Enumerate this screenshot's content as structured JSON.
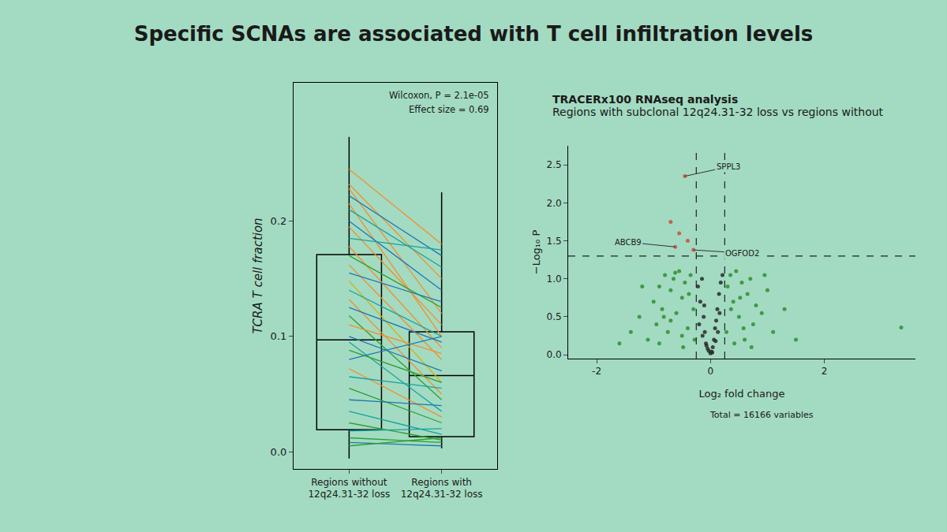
{
  "title": "Specific SCNAs are associated with T cell infiltration levels",
  "chart_data": [
    {
      "type": "box",
      "y_label": "TCRA T cell fraction",
      "categories": [
        "Regions without 12q24.31-32 loss",
        "Regions with 12q24.31-32 loss"
      ],
      "boxes": {
        "q1": [
          0.019,
          0.013
        ],
        "median": [
          0.097,
          0.066
        ],
        "q3": [
          0.171,
          0.104
        ],
        "lower": [
          -0.006,
          0.003
        ],
        "upper": [
          0.273,
          0.225
        ]
      },
      "color": "#000000",
      "pairs": [
        {
          "values": [
            0.245,
            0.18
          ],
          "color": "#f28e2b"
        },
        {
          "values": [
            0.232,
            0.15
          ],
          "color": "#f28e2b"
        },
        {
          "values": [
            0.228,
            0.12
          ],
          "color": "#f28e2b"
        },
        {
          "values": [
            0.222,
            0.17
          ],
          "color": "#1f77b4"
        },
        {
          "values": [
            0.215,
            0.1
          ],
          "color": "#f28e2b"
        },
        {
          "values": [
            0.21,
            0.16
          ],
          "color": "#17a2a0"
        },
        {
          "values": [
            0.2,
            0.14
          ],
          "color": "#1f77b4"
        },
        {
          "values": [
            0.195,
            0.11
          ],
          "color": "#f28e2b"
        },
        {
          "values": [
            0.185,
            0.175
          ],
          "color": "#17a2a0"
        },
        {
          "values": [
            0.178,
            0.09
          ],
          "color": "#f28e2b"
        },
        {
          "values": [
            0.17,
            0.125
          ],
          "color": "#2ca02c"
        },
        {
          "values": [
            0.162,
            0.08
          ],
          "color": "#f28e2b"
        },
        {
          "values": [
            0.155,
            0.13
          ],
          "color": "#1f77b4"
        },
        {
          "values": [
            0.148,
            0.06
          ],
          "color": "#d4b106"
        },
        {
          "values": [
            0.14,
            0.1
          ],
          "color": "#17a2a0"
        },
        {
          "values": [
            0.132,
            0.05
          ],
          "color": "#f28e2b"
        },
        {
          "values": [
            0.125,
            0.095
          ],
          "color": "#1f77b4"
        },
        {
          "values": [
            0.118,
            0.045
          ],
          "color": "#2ca02c"
        },
        {
          "values": [
            0.11,
            0.085
          ],
          "color": "#f28e2b"
        },
        {
          "values": [
            0.1,
            0.07
          ],
          "color": "#1f77b4"
        },
        {
          "values": [
            0.095,
            0.035
          ],
          "color": "#17a2a0"
        },
        {
          "values": [
            0.088,
            0.06
          ],
          "color": "#2ca02c"
        },
        {
          "values": [
            0.08,
            0.1
          ],
          "color": "#1f77b4"
        },
        {
          "values": [
            0.072,
            0.03
          ],
          "color": "#f28e2b"
        },
        {
          "values": [
            0.065,
            0.055
          ],
          "color": "#17a2a0"
        },
        {
          "values": [
            0.055,
            0.025
          ],
          "color": "#2ca02c"
        },
        {
          "values": [
            0.045,
            0.04
          ],
          "color": "#1f77b4"
        },
        {
          "values": [
            0.035,
            0.015
          ],
          "color": "#17a2a0"
        },
        {
          "values": [
            0.025,
            0.01
          ],
          "color": "#2ca02c"
        },
        {
          "values": [
            0.018,
            0.02
          ],
          "color": "#17a2a0"
        },
        {
          "values": [
            0.012,
            0.008
          ],
          "color": "#2ca02c"
        },
        {
          "values": [
            0.008,
            0.005
          ],
          "color": "#1f77b4"
        },
        {
          "values": [
            0.005,
            0.012
          ],
          "color": "#2ca02c"
        }
      ],
      "annotations": [
        "Wilcoxon, P = 2.1e-05",
        "Effect size = 0.69"
      ],
      "ylim": [
        -0.015,
        0.32
      ],
      "yticks": [
        {
          "value": 0,
          "label": "0.0"
        },
        0.1,
        0.2
      ],
      "grid": false
    },
    {
      "type": "scatter",
      "title": "TRACERx100 RNAseq analysis",
      "subtitle": "Regions with subclonal 12q24.31-32 loss vs regions without",
      "x_label": "Log₂ fold change",
      "y_label": "−Log₁₀ P",
      "series": [
        {
          "color": "#2a2a2a",
          "x": [
            -0.22,
            -0.18,
            -0.15,
            -0.12,
            -0.1,
            -0.08,
            -0.05,
            -0.03,
            0,
            0.02,
            0.04,
            0.06,
            0.08,
            0.1,
            0.12,
            0.15,
            0.18,
            0.21,
            -0.2,
            -0.14,
            -0.07,
            0.03,
            0.09,
            0.16,
            -0.11,
            0.13
          ],
          "y": [
            0.9,
            0.7,
            1.0,
            0.5,
            0.3,
            0.15,
            0.08,
            0.05,
            0.02,
            0.04,
            0.1,
            0.2,
            0.35,
            0.45,
            0.6,
            0.8,
            0.95,
            1.05,
            0.4,
            0.25,
            0.12,
            0.03,
            0.18,
            0.55,
            0.65,
            0.3
          ]
        },
        {
          "color": "#2f8f2f",
          "x": [
            -1.6,
            -1.4,
            -1.25,
            -1.1,
            -1.0,
            -0.95,
            -0.9,
            -0.85,
            -0.8,
            -0.75,
            -0.7,
            -0.65,
            -0.6,
            -0.55,
            -0.5,
            -0.45,
            -0.4,
            -0.35,
            -0.3,
            -0.28,
            -1.2,
            -0.9,
            -0.7,
            -0.5,
            -0.38,
            -0.62,
            -0.82,
            -0.48,
            0.28,
            0.3,
            0.35,
            0.4,
            0.45,
            0.5,
            0.55,
            0.6,
            0.65,
            0.7,
            0.75,
            0.8,
            0.9,
            1.0,
            1.1,
            1.3,
            1.5,
            0.42,
            0.58,
            0.72,
            0.36,
            0.95,
            0.52,
            3.35
          ],
          "y": [
            0.15,
            0.3,
            0.5,
            0.2,
            0.7,
            0.4,
            0.9,
            0.6,
            1.05,
            0.3,
            0.85,
            1.0,
            0.55,
            1.1,
            0.75,
            0.95,
            0.35,
            1.05,
            0.6,
            0.2,
            0.9,
            0.15,
            0.45,
            0.25,
            0.8,
            1.08,
            0.5,
            0.1,
            0.3,
            0.9,
            1.05,
            0.7,
            1.1,
            0.5,
            0.95,
            0.2,
            0.8,
            1.0,
            0.4,
            0.65,
            0.55,
            0.85,
            0.3,
            0.6,
            0.2,
            0.15,
            0.35,
            0.1,
            0.6,
            1.05,
            0.75,
            0.36
          ]
        },
        {
          "color": "#c8503c",
          "x": [
            -0.45,
            -0.7,
            -0.55,
            -0.62,
            -0.4,
            -0.3
          ],
          "y": [
            2.35,
            1.75,
            1.6,
            1.42,
            1.5,
            1.38
          ]
        }
      ],
      "labels": [
        {
          "text": "SPPL3",
          "x": -0.45,
          "y": 2.35
        },
        {
          "text": "ABCB9",
          "x": -0.62,
          "y": 1.42
        },
        {
          "text": "OGFOD2",
          "x": -0.3,
          "y": 1.38
        }
      ],
      "thresholds": {
        "x": [
          -0.25,
          0.25
        ],
        "y": 1.3
      },
      "xlim": [
        -2.5,
        3.6
      ],
      "xticks": [
        -2,
        0,
        2
      ],
      "ylim": [
        -0.05,
        2.75
      ],
      "yticks": [
        {
          "value": 0,
          "label": "0.0"
        },
        0.5,
        {
          "value": 1,
          "label": "1.0"
        },
        1.5,
        {
          "value": 2,
          "label": "2.0"
        },
        2.5
      ],
      "annotations": [
        "Total = 16166 variables"
      ],
      "grid": false
    }
  ]
}
